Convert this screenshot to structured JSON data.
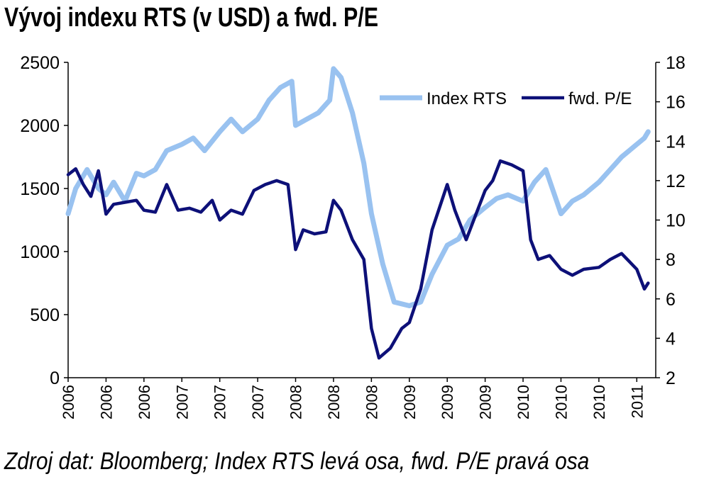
{
  "title": "Vývoj indexu RTS (v USD) a fwd. P/E",
  "source": "Zdroj dat: Bloomberg; Index RTS levá osa, fwd. P/E pravá osa",
  "colors": {
    "rts": "#99c2f0",
    "pe": "#0d1078",
    "axis": "#000000"
  },
  "chart_data": {
    "type": "line",
    "legend_position": "top-right",
    "grid": false,
    "x_tick_labels": [
      "2006",
      "2006",
      "2006",
      "2007",
      "2007",
      "2007",
      "2008",
      "2008",
      "2008",
      "2009",
      "2009",
      "2009",
      "2010",
      "2010",
      "2010",
      "2011"
    ],
    "y_left": {
      "ticks": [
        0,
        500,
        1000,
        1500,
        2000,
        2500
      ],
      "lim": [
        0,
        2500
      ]
    },
    "y_right": {
      "ticks": [
        2,
        4,
        6,
        8,
        10,
        12,
        14,
        16,
        18
      ],
      "lim": [
        2,
        18
      ]
    },
    "series": [
      {
        "name": "Index RTS",
        "axis": "left",
        "points": [
          [
            0,
            1300
          ],
          [
            0.2,
            1500
          ],
          [
            0.5,
            1650
          ],
          [
            0.8,
            1500
          ],
          [
            1,
            1450
          ],
          [
            1.2,
            1550
          ],
          [
            1.5,
            1400
          ],
          [
            1.8,
            1620
          ],
          [
            2,
            1600
          ],
          [
            2.3,
            1650
          ],
          [
            2.6,
            1800
          ],
          [
            3,
            1850
          ],
          [
            3.3,
            1900
          ],
          [
            3.6,
            1800
          ],
          [
            4,
            1950
          ],
          [
            4.3,
            2050
          ],
          [
            4.6,
            1950
          ],
          [
            5,
            2050
          ],
          [
            5.3,
            2200
          ],
          [
            5.6,
            2300
          ],
          [
            5.9,
            2350
          ],
          [
            6,
            2000
          ],
          [
            6.3,
            2050
          ],
          [
            6.6,
            2100
          ],
          [
            6.9,
            2200
          ],
          [
            7,
            2450
          ],
          [
            7.2,
            2380
          ],
          [
            7.5,
            2100
          ],
          [
            7.8,
            1700
          ],
          [
            8,
            1300
          ],
          [
            8.3,
            900
          ],
          [
            8.6,
            600
          ],
          [
            9,
            570
          ],
          [
            9.3,
            600
          ],
          [
            9.6,
            820
          ],
          [
            10,
            1050
          ],
          [
            10.3,
            1100
          ],
          [
            10.6,
            1250
          ],
          [
            11,
            1350
          ],
          [
            11.3,
            1420
          ],
          [
            11.6,
            1450
          ],
          [
            12,
            1400
          ],
          [
            12.3,
            1550
          ],
          [
            12.6,
            1650
          ],
          [
            13,
            1300
          ],
          [
            13.3,
            1400
          ],
          [
            13.6,
            1450
          ],
          [
            14,
            1550
          ],
          [
            14.3,
            1650
          ],
          [
            14.6,
            1750
          ],
          [
            15,
            1850
          ],
          [
            15.2,
            1900
          ],
          [
            15.3,
            1950
          ]
        ]
      },
      {
        "name": "fwd. P/E",
        "axis": "right",
        "points": [
          [
            0,
            12.3
          ],
          [
            0.2,
            12.6
          ],
          [
            0.4,
            11.8
          ],
          [
            0.6,
            11.2
          ],
          [
            0.8,
            12.5
          ],
          [
            1,
            10.3
          ],
          [
            1.2,
            10.8
          ],
          [
            1.5,
            10.9
          ],
          [
            1.8,
            11.0
          ],
          [
            2,
            10.5
          ],
          [
            2.3,
            10.4
          ],
          [
            2.6,
            11.8
          ],
          [
            2.9,
            10.5
          ],
          [
            3.2,
            10.6
          ],
          [
            3.5,
            10.4
          ],
          [
            3.8,
            11.0
          ],
          [
            4,
            10.0
          ],
          [
            4.3,
            10.5
          ],
          [
            4.6,
            10.3
          ],
          [
            4.9,
            11.5
          ],
          [
            5.2,
            11.8
          ],
          [
            5.5,
            12.0
          ],
          [
            5.8,
            11.8
          ],
          [
            6,
            8.5
          ],
          [
            6.2,
            9.5
          ],
          [
            6.5,
            9.3
          ],
          [
            6.8,
            9.4
          ],
          [
            7,
            11.0
          ],
          [
            7.2,
            10.5
          ],
          [
            7.5,
            9.0
          ],
          [
            7.8,
            8.0
          ],
          [
            8,
            4.5
          ],
          [
            8.2,
            3.0
          ],
          [
            8.5,
            3.5
          ],
          [
            8.8,
            4.5
          ],
          [
            9,
            4.8
          ],
          [
            9.3,
            6.5
          ],
          [
            9.6,
            9.5
          ],
          [
            10,
            11.8
          ],
          [
            10.2,
            10.5
          ],
          [
            10.5,
            9.0
          ],
          [
            10.8,
            10.5
          ],
          [
            11,
            11.5
          ],
          [
            11.2,
            12.0
          ],
          [
            11.4,
            13.0
          ],
          [
            11.7,
            12.8
          ],
          [
            12,
            12.5
          ],
          [
            12.2,
            9.0
          ],
          [
            12.4,
            8.0
          ],
          [
            12.7,
            8.2
          ],
          [
            13,
            7.5
          ],
          [
            13.3,
            7.2
          ],
          [
            13.6,
            7.5
          ],
          [
            14,
            7.6
          ],
          [
            14.3,
            8.0
          ],
          [
            14.6,
            8.3
          ],
          [
            15,
            7.5
          ],
          [
            15.2,
            6.5
          ],
          [
            15.3,
            6.8
          ]
        ]
      }
    ]
  }
}
